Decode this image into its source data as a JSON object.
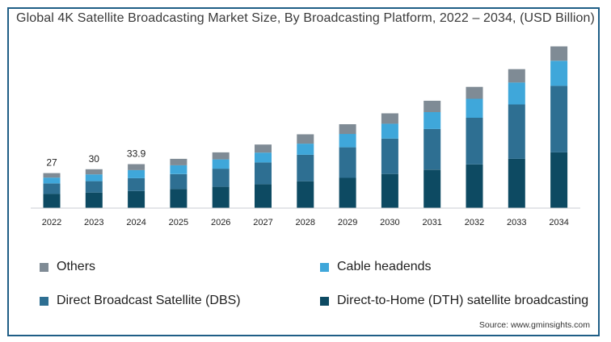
{
  "chart_data": {
    "type": "bar",
    "stacked": true,
    "title": "Global 4K Satellite Broadcasting Market Size, By Broadcasting Platform, 2022 – 2034, (USD Billion)",
    "xlabel": "",
    "ylabel": "",
    "categories": [
      "2022",
      "2023",
      "2024",
      "2025",
      "2026",
      "2027",
      "2028",
      "2029",
      "2030",
      "2031",
      "2032",
      "2033",
      "2034"
    ],
    "series": [
      {
        "name": "Direct-to-Home (DTH) satellite broadcasting",
        "color": "#0d4a62",
        "values": [
          11.0,
          12.0,
          13.2,
          14.7,
          16.4,
          18.4,
          20.7,
          23.3,
          26.3,
          29.7,
          33.6,
          38.0,
          43.0
        ]
      },
      {
        "name": "Direct Broadcast Satellite (DBS)",
        "color": "#2e6f92",
        "values": [
          8.0,
          8.8,
          9.9,
          11.5,
          14.0,
          16.8,
          20.4,
          23.6,
          27.3,
          31.3,
          36.1,
          41.9,
          51.3
        ]
      },
      {
        "name": "Cable headends",
        "color": "#3fa7da",
        "values": [
          4.5,
          5.2,
          6.2,
          6.8,
          7.2,
          7.6,
          8.6,
          10.3,
          11.5,
          13.0,
          14.6,
          17.0,
          19.3
        ]
      },
      {
        "name": "Others",
        "color": "#7f8b95",
        "values": [
          3.5,
          4.0,
          4.6,
          5.0,
          5.4,
          6.2,
          7.2,
          7.5,
          8.0,
          8.8,
          9.2,
          10.3,
          11.1
        ]
      }
    ],
    "data_labels": [
      {
        "category": "2022",
        "text": "27"
      },
      {
        "category": "2023",
        "text": "30"
      },
      {
        "category": "2024",
        "text": "33.9"
      }
    ],
    "ylim": [
      0,
      130
    ],
    "grid": false,
    "legend_position": "bottom"
  },
  "legend": {
    "items": [
      {
        "label": "Others",
        "color": "#7f8b95"
      },
      {
        "label": "Cable headends",
        "color": "#3fa7da"
      },
      {
        "label": "Direct Broadcast Satellite (DBS)",
        "color": "#2e6f92"
      },
      {
        "label": "Direct-to-Home (DTH) satellite broadcasting",
        "color": "#0d4a62"
      }
    ]
  },
  "source": "Source: www.gminsights.com"
}
